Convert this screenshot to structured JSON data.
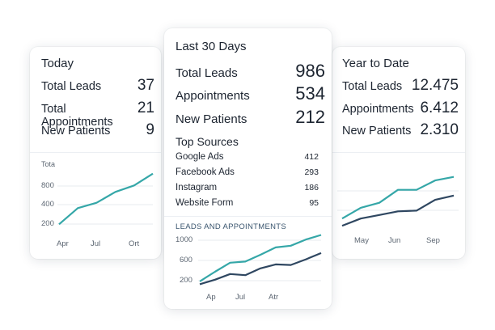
{
  "colors": {
    "teal": "#35a7a8",
    "navy": "#2f4761",
    "grid": "#e7ebef"
  },
  "today": {
    "title": "Today",
    "stats": [
      {
        "label": "Total Leads",
        "value": "37"
      },
      {
        "label": "Total Appointments",
        "value": "21"
      },
      {
        "label": "New Patients",
        "value": "9"
      }
    ],
    "chart": {
      "ylabels": [
        "Tota",
        "800",
        "400",
        "200"
      ],
      "xlabels": [
        "Apr",
        "Jul",
        "Ort"
      ],
      "series_teal": [
        180,
        330,
        380,
        480,
        540,
        650
      ]
    }
  },
  "last30": {
    "title": "Last 30 Days",
    "stats": [
      {
        "label": "Total Leads",
        "value": "986"
      },
      {
        "label": "Appointments",
        "value": "534"
      },
      {
        "label": "New Patients",
        "value": "212"
      }
    ],
    "sources_title": "Top Sources",
    "sources": [
      {
        "name": "Google Ads",
        "count": "412"
      },
      {
        "name": "Facebook Ads",
        "count": "293"
      },
      {
        "name": "Instagram",
        "count": "186"
      },
      {
        "name": "Website Form",
        "count": "95"
      }
    ],
    "chart_title": "LEADS AND APPOINTMENTS",
    "chart": {
      "ylabels": [
        "1000",
        "600",
        "200"
      ],
      "xlabels": [
        "Ap",
        "Jul",
        "Atr"
      ],
      "series_teal": [
        230,
        400,
        560,
        580,
        700,
        830,
        860,
        970,
        1050
      ],
      "series_navy": [
        180,
        260,
        360,
        340,
        460,
        530,
        520,
        620,
        730
      ]
    }
  },
  "ytd": {
    "title": "Year to Date",
    "stats": [
      {
        "label": "Total Leads",
        "value": "12.475"
      },
      {
        "label": "Appointments",
        "value": "6.412"
      },
      {
        "label": "New Patients",
        "value": "2.310"
      }
    ],
    "chart": {
      "xlabels": [
        "May",
        "Jun",
        "Sep"
      ],
      "series_teal": [
        300,
        450,
        520,
        700,
        700,
        830,
        880
      ],
      "series_navy": [
        200,
        300,
        350,
        400,
        410,
        560,
        620
      ]
    }
  }
}
